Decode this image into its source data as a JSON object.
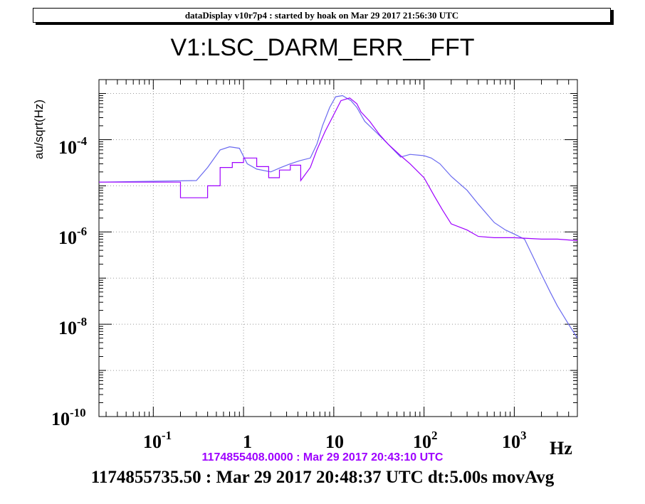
{
  "banner": "dataDisplay v10r7p4 : started by hoak on Mar 29 2017 21:56:30 UTC",
  "chart_data": {
    "type": "line",
    "title": "V1:LSC_DARM_ERR__FFT",
    "ylabel": "au/sqrt(Hz)",
    "xlabel": "Hz",
    "xscale": "log",
    "yscale": "log",
    "xlim": [
      0.025,
      5000
    ],
    "ylim": [
      1e-10,
      0.002
    ],
    "grid": true,
    "x_ticks": [
      "10^-1",
      "1",
      "10",
      "10^2",
      "10^3"
    ],
    "y_ticks": [
      "10^-10",
      "10^-8",
      "10^-6",
      "10^-4"
    ],
    "series": [
      {
        "color": "#6a6af0",
        "x": [
          0.025,
          0.3,
          0.4,
          0.55,
          0.7,
          0.9,
          1.1,
          1.4,
          2.0,
          2.6,
          3.3,
          4.2,
          5.5,
          6.5,
          7.5,
          9.0,
          10.5,
          12.5,
          15.5,
          18.0,
          22.0,
          30.0,
          40.0,
          55.0,
          70.0,
          100.0,
          120.0,
          150.0,
          200.0,
          300.0,
          400.0,
          600.0,
          800.0,
          1000.0,
          1300.0,
          1600.0,
          2000.0,
          2500.0,
          3000.0,
          4000.0,
          5000.0
        ],
        "values": [
          1.2e-05,
          1.3e-05,
          2.5e-05,
          6e-05,
          7e-05,
          6.5e-05,
          3e-05,
          2.3e-05,
          2e-05,
          2.5e-05,
          3e-05,
          3.5e-05,
          4e-05,
          8e-05,
          0.0002,
          0.0005,
          0.00085,
          0.0009,
          0.0007,
          0.0005,
          0.00025,
          0.00014,
          8e-05,
          4.2e-05,
          4.8e-05,
          4.5e-05,
          4e-05,
          3e-05,
          1.6e-05,
          8e-06,
          4e-06,
          1.6e-06,
          1.1e-06,
          9e-07,
          7e-07,
          3e-07,
          1.2e-07,
          5e-08,
          2.5e-08,
          1e-08,
          5e-09
        ]
      },
      {
        "color": "#9e00ff",
        "x": [
          0.025,
          0.2,
          0.2,
          0.4,
          0.4,
          0.55,
          0.55,
          0.75,
          0.75,
          1.0,
          1.0,
          1.4,
          1.4,
          1.9,
          1.9,
          2.5,
          2.5,
          3.3,
          3.3,
          4.3,
          4.3,
          5.5,
          6.5,
          8.0,
          10.0,
          12.0,
          15.0,
          18.0,
          20.0,
          25.0,
          32.0,
          40.0,
          55.0,
          70.0,
          100.0,
          130.0,
          160.0,
          200.0,
          300.0,
          400.0,
          600.0,
          1000.0,
          2000.0,
          3000.0,
          5000.0
        ],
        "values": [
          1.2e-05,
          1.2e-05,
          5.5e-06,
          5.5e-06,
          1e-05,
          1e-05,
          2.5e-05,
          2.5e-05,
          3.2e-05,
          3.2e-05,
          4e-05,
          4e-05,
          2.6e-05,
          2.6e-05,
          1.5e-05,
          1.5e-05,
          2.2e-05,
          2.2e-05,
          2.8e-05,
          2.8e-05,
          1.3e-05,
          2.5e-05,
          6e-05,
          0.00015,
          0.00035,
          0.0007,
          0.0008,
          0.0006,
          0.0004,
          0.00025,
          0.00013,
          8e-05,
          4.5e-05,
          3e-05,
          1.5e-05,
          6e-06,
          3e-06,
          1.5e-06,
          1.1e-06,
          8e-07,
          7.5e-07,
          7.5e-07,
          7e-07,
          7e-07,
          6.5e-07
        ]
      }
    ]
  },
  "footer": {
    "reference": "1174855408.0000 : Mar 29 2017 20:43:10 UTC",
    "time": "1174855735.50 : Mar 29 2017 20:48:37 UTC dt:5.00s movAvg"
  }
}
